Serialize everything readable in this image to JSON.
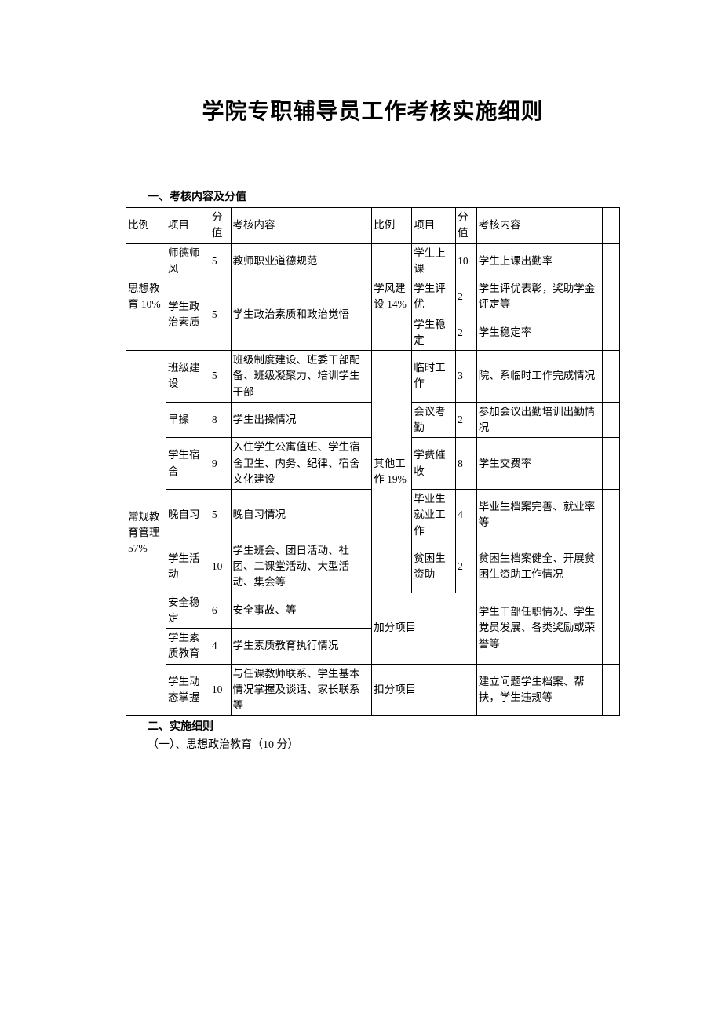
{
  "title": "学院专职辅导员工作考核实施细则",
  "section1_heading": "一、考核内容及分值",
  "headers": {
    "ratio": "比例",
    "item": "项目",
    "score": "分值",
    "content": "考核内容"
  },
  "left_groups": [
    {
      "ratio": "思想教育 10%",
      "rows": [
        {
          "item": "师德师风",
          "score": "5",
          "content": "教师职业道德规范"
        },
        {
          "item": "学生政治素质",
          "score": "5",
          "content": "学生政治素质和政治觉悟"
        }
      ]
    },
    {
      "ratio": "常规教育管理57%",
      "rows": [
        {
          "item": "班级建设",
          "score": "5",
          "content": "班级制度建设、班委干部配备、班级凝聚力、培训学生干部"
        },
        {
          "item": "早操",
          "score": "8",
          "content": "学生出操情况"
        },
        {
          "item": "学生宿舍",
          "score": "9",
          "content": "入住学生公寓值班、学生宿舍卫生、内务、纪律、宿舍文化建设"
        },
        {
          "item": "晚自习",
          "score": "5",
          "content": "晚自习情况"
        },
        {
          "item": "学生活动",
          "score": "10",
          "content": "学生班会、团日活动、社团、二课堂活动、大型活动、集会等"
        },
        {
          "item": "安全稳定",
          "score": "6",
          "content": "安全事故、等"
        },
        {
          "item": "学生素质教育",
          "score": "4",
          "content": "学生素质教育执行情况"
        },
        {
          "item": "学生动态掌握",
          "score": "10",
          "content": "与任课教师联系、学生基本情况掌握及谈话、家长联系等"
        }
      ]
    }
  ],
  "right_groups": [
    {
      "ratio": "学风建设 14%",
      "rows": [
        {
          "item": "学生上课",
          "score": "10",
          "content": "学生上课出勤率"
        },
        {
          "item": "学生评优",
          "score": "2",
          "content": "学生评优表彰，奖助学金评定等"
        },
        {
          "item": "学生稳定",
          "score": "2",
          "content": "学生稳定率"
        }
      ]
    },
    {
      "ratio": "其他工作 19%",
      "rows": [
        {
          "item": "临时工作",
          "score": "3",
          "content": "院、系临时工作完成情况"
        },
        {
          "item": "会议考勤",
          "score": "2",
          "content": "参加会议出勤培训出勤情况"
        },
        {
          "item": "学费催收",
          "score": "8",
          "content": "学生交费率"
        },
        {
          "item": "毕业生就业工作",
          "score": "4",
          "content": "毕业生档案完善、就业率等"
        },
        {
          "item": "贫困生资助",
          "score": "2",
          "content": "贫困生档案健全、开展贫困生资助工作情况"
        }
      ]
    },
    {
      "ratio": "加分项目",
      "content": "学生干部任职情况、学生党员发展、各类奖励或荣誉等"
    },
    {
      "ratio": "扣分项目",
      "content": "建立问题学生档案、帮扶，学生违规等"
    }
  ],
  "footer": {
    "line1": "二、实施细则",
    "line2": "（一）、思想政治教育（10 分）"
  }
}
